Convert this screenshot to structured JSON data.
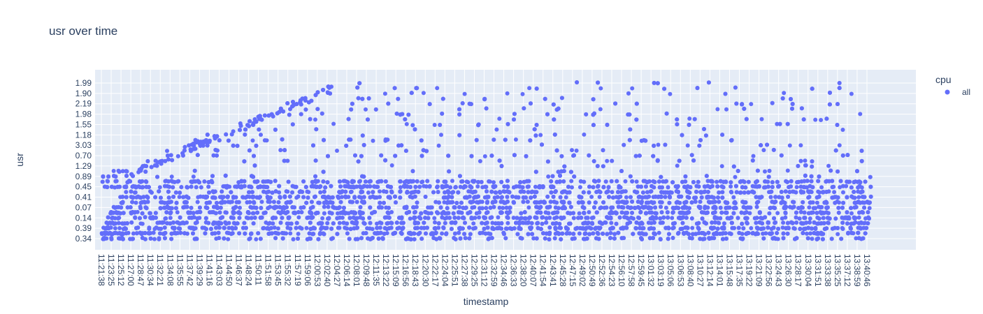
{
  "chart_data": {
    "type": "scatter",
    "title": "usr over time",
    "xlabel": "timestamp",
    "ylabel": "usr",
    "legend_title": "cpu",
    "legend_position": "top-right",
    "grid": true,
    "y_axis_type": "category",
    "x_axis_type": "category",
    "y_categories": [
      "0.34",
      "0.39",
      "0.14",
      "0.07",
      "0.41",
      "0.45",
      "0.89",
      "1.29",
      "0.70",
      "3.03",
      "1.18",
      "1.55",
      "1.98",
      "2.19",
      "1.90",
      "1.99"
    ],
    "x_ticks": [
      "11:21:38",
      "11:23:25",
      "11:25:12",
      "11:27:00",
      "11:28:47",
      "11:30:34",
      "11:32:21",
      "11:34:08",
      "11:35:55",
      "11:37:42",
      "11:39:29",
      "11:41:16",
      "11:43:03",
      "11:44:50",
      "11:46:37",
      "11:48:24",
      "11:50:11",
      "11:51:58",
      "11:53:45",
      "11:55:32",
      "11:57:19",
      "11:59:06",
      "12:00:53",
      "12:02:40",
      "12:04:27",
      "12:06:14",
      "12:08:01",
      "12:09:48",
      "12:11:35",
      "12:13:22",
      "12:15:09",
      "12:16:56",
      "12:18:43",
      "12:20:30",
      "12:22:17",
      "12:24:04",
      "12:25:51",
      "12:27:38",
      "12:29:25",
      "12:31:12",
      "12:32:59",
      "12:34:46",
      "12:36:33",
      "12:38:20",
      "12:40:07",
      "12:41:54",
      "12:43:41",
      "12:45:28",
      "12:47:15",
      "12:49:02",
      "12:50:49",
      "12:52:36",
      "12:54:23",
      "12:56:10",
      "12:57:58",
      "12:59:45",
      "13:01:32",
      "13:03:19",
      "13:05:06",
      "13:06:53",
      "13:08:40",
      "13:10:27",
      "13:12:14",
      "13:14:01",
      "13:15:48",
      "13:17:35",
      "13:19:22",
      "13:21:09",
      "13:22:56",
      "13:24:43",
      "13:26:30",
      "13:28:17",
      "13:30:04",
      "13:31:51",
      "13:33:38",
      "13:35:25",
      "13:37:12",
      "13:38:59",
      "13:40:46"
    ],
    "series": [
      {
        "name": "all",
        "color": "#636efa",
        "mode": "markers"
      }
    ],
    "colors": {
      "plot_bg": "#e5ecf6",
      "grid": "#ffffff",
      "text": "#2a3f5f",
      "marker": "#636efa"
    }
  }
}
